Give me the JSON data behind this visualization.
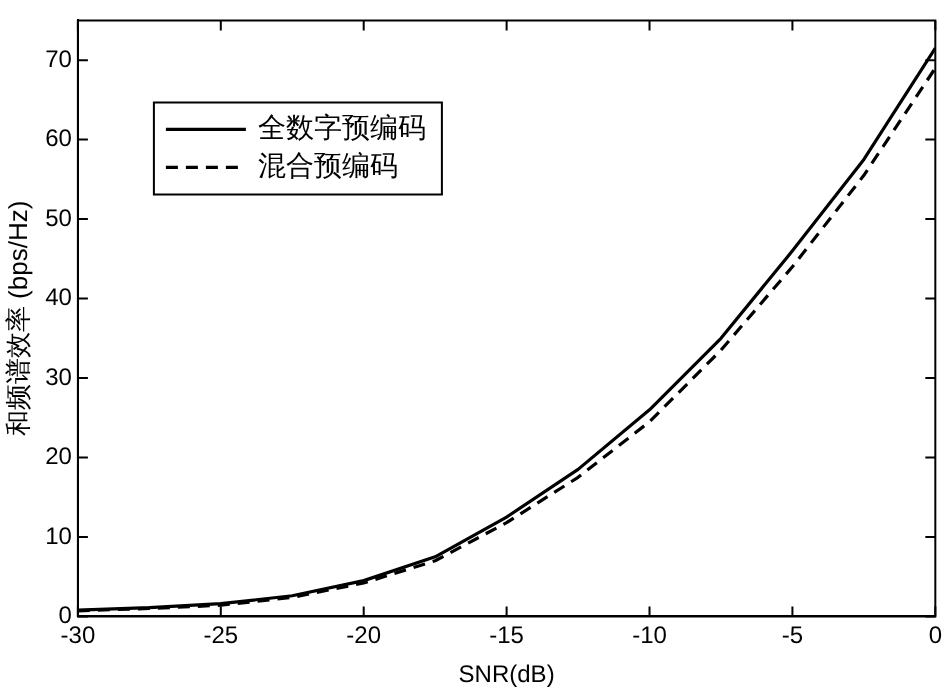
{
  "chart_data": {
    "type": "line",
    "xlabel": "SNR(dB)",
    "ylabel": "和频谱效率 (bps/Hz)",
    "x": [
      -30,
      -27.5,
      -25,
      -22.5,
      -20,
      -17.5,
      -15,
      -12.5,
      -10,
      -7.5,
      -5,
      -2.5,
      0
    ],
    "series": [
      {
        "name": "全数字预编码",
        "color": "#000000",
        "line_style": "solid",
        "values": [
          0.8,
          1.1,
          1.6,
          2.6,
          4.5,
          7.5,
          12.5,
          18.5,
          26,
          35,
          46,
          57.5,
          71.5
        ]
      },
      {
        "name": "混合预编码",
        "color": "#000000",
        "line_style": "dashed",
        "values": [
          0.7,
          1.0,
          1.4,
          2.4,
          4.2,
          7,
          11.8,
          17.5,
          24.5,
          33.5,
          44,
          55.5,
          69
        ]
      }
    ],
    "xlim": [
      -30,
      0
    ],
    "xticks": [
      -30,
      -25,
      -20,
      -15,
      -10,
      -5,
      0
    ],
    "ylim": [
      0,
      75
    ],
    "yticks": [
      0,
      10,
      20,
      30,
      40,
      50,
      60,
      70
    ],
    "grid": false,
    "legend": "top left",
    "marker": "none"
  }
}
